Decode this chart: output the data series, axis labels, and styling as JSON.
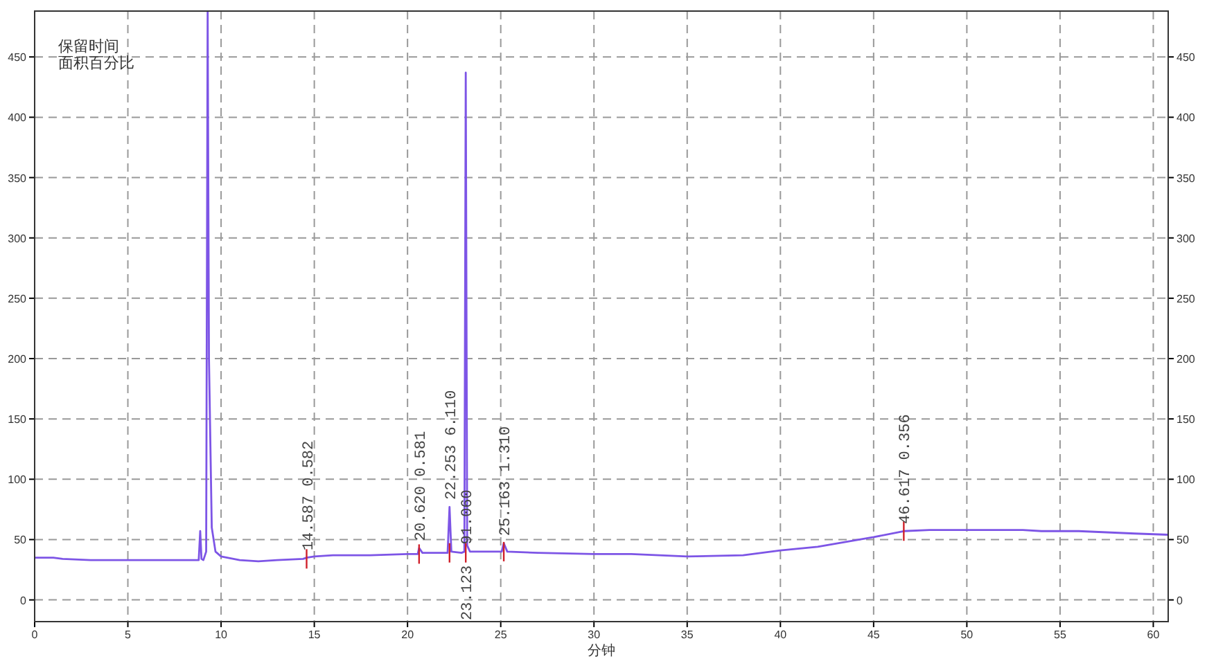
{
  "chart_data": {
    "type": "line",
    "xlabel": "分钟",
    "annotations": [
      "保留时间",
      "面积百分比",
      {
        "text": "14.587  0.582",
        "x": 14.587,
        "y": 35
      },
      {
        "text": "20.620  0.581",
        "x": 20.62,
        "y": 43
      },
      {
        "text": "22.253  6.110",
        "x": 22.253,
        "y": 77
      },
      {
        "text": "91.060",
        "x": 23.123,
        "y": 40
      },
      {
        "text": "23.123",
        "x": 23.123,
        "y": 40
      },
      {
        "text": "25.163  1.310",
        "x": 25.163,
        "y": 47
      },
      {
        "text": "46.617  0.356",
        "x": 46.617,
        "y": 57
      }
    ],
    "x": [
      0,
      1,
      1.5,
      3,
      5,
      8.8,
      8.88,
      8.95,
      9.05,
      9.2,
      9.28,
      9.35,
      9.5,
      9.7,
      10,
      11,
      12,
      13,
      14.4,
      14.587,
      15,
      16,
      17,
      18,
      20,
      20.55,
      20.62,
      20.8,
      22.15,
      22.253,
      22.35,
      22.9,
      23.05,
      23.123,
      23.2,
      23.35,
      25.05,
      25.163,
      25.35,
      27,
      30,
      32,
      35,
      38,
      40,
      42,
      45,
      46.617,
      48,
      53,
      54,
      56,
      59,
      60.8
    ],
    "series": [
      {
        "color": "#7d55e6",
        "values": [
          35,
          35,
          34,
          33,
          33,
          33,
          57,
          34,
          33,
          40,
          488,
          200,
          60,
          40,
          36,
          33,
          32,
          33,
          34,
          35,
          36,
          37,
          37,
          37,
          38,
          38,
          43,
          39,
          39,
          77,
          40,
          39,
          40,
          437,
          45,
          40,
          40,
          47,
          40,
          39,
          38,
          38,
          36,
          37,
          41,
          44,
          52,
          57,
          58,
          58,
          57,
          57,
          55,
          54
        ]
      }
    ],
    "xlim": [
      0,
      60.8
    ],
    "xticks": [
      0,
      5,
      10,
      15,
      20,
      25,
      30,
      35,
      40,
      45,
      50,
      55,
      60
    ],
    "ylim": [
      -18,
      488
    ],
    "yticks": [
      0,
      50,
      100,
      150,
      200,
      250,
      300,
      350,
      400,
      450
    ],
    "y2lim": [
      -18,
      488
    ],
    "y2ticks": [
      0,
      50,
      100,
      150,
      200,
      250,
      300,
      350,
      400,
      450
    ],
    "grid": true
  }
}
